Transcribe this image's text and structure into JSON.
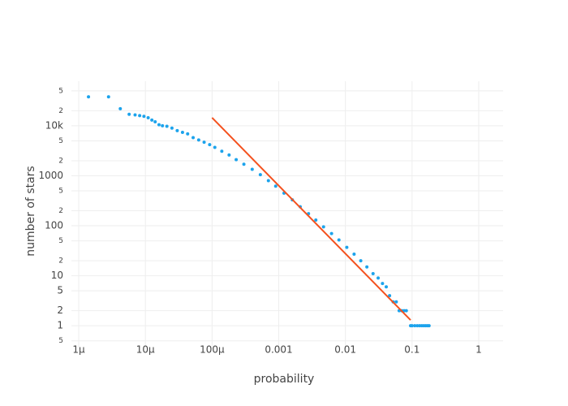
{
  "chart_data": {
    "type": "scatter",
    "xlabel": "probability",
    "ylabel": "number of stars",
    "xscale": "log",
    "yscale": "log",
    "grid": true,
    "xlim": [
      7.76e-07,
      2.32
    ],
    "ylim": [
      0.34,
      78000
    ],
    "xticks": [
      {
        "value": 1e-06,
        "label": "1μ"
      },
      {
        "value": 1e-05,
        "label": "10μ"
      },
      {
        "value": 0.0001,
        "label": "100μ"
      },
      0.001,
      0.01,
      0.1,
      1
    ],
    "yticks": [
      {
        "value": 0.5,
        "label": "5"
      },
      1,
      2,
      5,
      10,
      {
        "value": 20,
        "label": "2"
      },
      {
        "value": 50,
        "label": "5"
      },
      100,
      {
        "value": 200,
        "label": "2"
      },
      {
        "value": 500,
        "label": "5"
      },
      1000,
      {
        "value": 2000,
        "label": "2"
      },
      {
        "value": 5000,
        "label": "5"
      },
      {
        "value": 10000,
        "label": "10k"
      },
      {
        "value": 20000,
        "label": "2"
      },
      {
        "value": 50000,
        "label": "5"
      }
    ],
    "series": [
      {
        "mode": "markers",
        "color": "#1ca3ec",
        "x": [
          1.4e-06,
          2.8e-06,
          4.2e-06,
          5.7e-06,
          7e-06,
          8.2e-06,
          9.5e-06,
          1.1e-05,
          1.25e-05,
          1.4e-05,
          1.6e-05,
          1.8e-05,
          2.1e-05,
          2.5e-05,
          3e-05,
          3.6e-05,
          4.3e-05,
          5.2e-05,
          6.3e-05,
          7.6e-05,
          9.2e-05,
          0.00011,
          0.00014,
          0.00018,
          0.00023,
          0.0003,
          0.0004,
          0.00053,
          0.0007,
          0.0009,
          0.0012,
          0.0016,
          0.0021,
          0.0028,
          0.0036,
          0.0047,
          0.0062,
          0.008,
          0.0105,
          0.0135,
          0.017,
          0.021,
          0.026,
          0.031,
          0.036,
          0.041,
          0.046,
          0.052,
          0.058,
          0.064,
          0.07,
          0.076,
          0.082,
          0.095,
          0.1,
          0.11,
          0.12,
          0.13,
          0.14,
          0.15,
          0.16,
          0.17,
          0.18
        ],
        "values": [
          38000,
          38000,
          22000,
          17000,
          16500,
          16000,
          15500,
          14500,
          13000,
          12000,
          10500,
          10000,
          9800,
          9000,
          8000,
          7400,
          6900,
          5800,
          5200,
          4700,
          4200,
          3700,
          3100,
          2600,
          2100,
          1700,
          1350,
          1050,
          800,
          620,
          450,
          330,
          240,
          175,
          130,
          95,
          70,
          52,
          37,
          27,
          20,
          15,
          11,
          9,
          7,
          6,
          4,
          3,
          3,
          2,
          2,
          2,
          2,
          1,
          1,
          1,
          1,
          1,
          1,
          1,
          1,
          1,
          1
        ]
      },
      {
        "mode": "lines",
        "color": "#f4511e",
        "x": [
          0.0001,
          0.095
        ],
        "values": [
          14500,
          1.3
        ]
      }
    ]
  }
}
